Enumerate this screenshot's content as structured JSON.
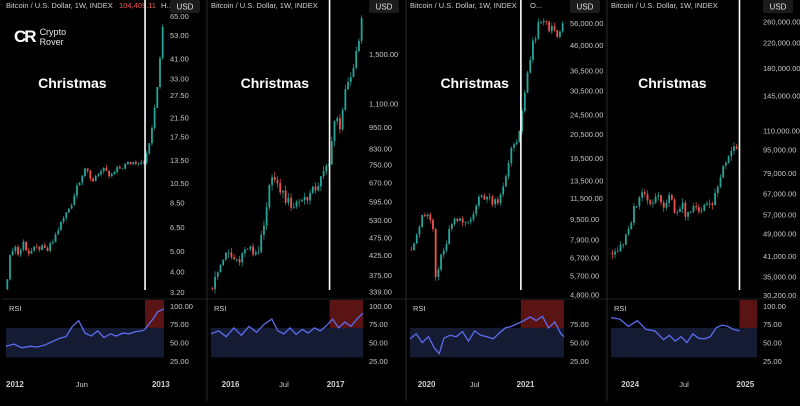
{
  "brand": {
    "mark": "CR",
    "line1": "Crypto",
    "line2": "Rover"
  },
  "colors": {
    "background": "#000000",
    "candle_up": "#26a69a",
    "candle_down": "#ef5350",
    "christmas_line": "#ffffff",
    "rsi_line": "#5b6cf0",
    "rsi_band": "#141b33",
    "overbought_zone": "#5a1414",
    "divider": "#2a2a2a"
  },
  "chart_data": [
    {
      "type": "candlestick",
      "title": "Bitcoin / U.S. Dollar, 1W, INDEX",
      "header_price": "104,409.11",
      "header_suffix": "H...",
      "currency_label": "USD",
      "scale": "log",
      "ylim": [
        3.0,
        68.0
      ],
      "y_ticks": [
        "65.00",
        "53.00",
        "41.00",
        "33.00",
        "27.50",
        "21.50",
        "17.50",
        "13.50",
        "10.50",
        "8.50",
        "6.50",
        "5.00",
        "4.00",
        "3.20"
      ],
      "y_tick_values": [
        65,
        53,
        41,
        33,
        27.5,
        21.5,
        17.5,
        13.5,
        10.5,
        8.5,
        6.5,
        5,
        4,
        3.2
      ],
      "x_ticks": [
        "2012",
        "Jun",
        "2013"
      ],
      "x_tick_positions": [
        0.0,
        0.48,
        0.98
      ],
      "annotation": "Christmas",
      "christmas_x": 0.88,
      "price_path": [
        [
          0.0,
          3.3
        ],
        [
          0.02,
          4.5
        ],
        [
          0.05,
          5.4
        ],
        [
          0.08,
          4.8
        ],
        [
          0.11,
          5.5
        ],
        [
          0.14,
          4.9
        ],
        [
          0.18,
          5.1
        ],
        [
          0.22,
          5.2
        ],
        [
          0.26,
          5.0
        ],
        [
          0.3,
          5.6
        ],
        [
          0.34,
          6.6
        ],
        [
          0.38,
          7.5
        ],
        [
          0.42,
          8.6
        ],
        [
          0.45,
          10.3
        ],
        [
          0.48,
          11.5
        ],
        [
          0.5,
          12.4
        ],
        [
          0.54,
          10.6
        ],
        [
          0.58,
          11.8
        ],
        [
          0.62,
          12.0
        ],
        [
          0.66,
          11.2
        ],
        [
          0.7,
          12.1
        ],
        [
          0.74,
          12.6
        ],
        [
          0.78,
          13.1
        ],
        [
          0.82,
          13.3
        ],
        [
          0.86,
          13.4
        ],
        [
          0.88,
          13.5
        ],
        [
          0.9,
          15.0
        ],
        [
          0.92,
          18.5
        ],
        [
          0.94,
          23.0
        ],
        [
          0.96,
          31.0
        ],
        [
          0.98,
          46.0
        ],
        [
          1.0,
          68.0
        ]
      ],
      "rsi": {
        "label": "RSI",
        "y_ticks": [
          "100.00",
          "75.00",
          "50.00",
          "25.00"
        ],
        "y_tick_values": [
          100,
          75,
          50,
          25
        ],
        "ylim": [
          10,
          108
        ],
        "band": [
          30,
          70
        ],
        "overbought_from_x": 0.88,
        "path": [
          [
            0.0,
            45
          ],
          [
            0.05,
            48
          ],
          [
            0.1,
            43
          ],
          [
            0.15,
            45
          ],
          [
            0.2,
            44
          ],
          [
            0.25,
            47
          ],
          [
            0.3,
            52
          ],
          [
            0.34,
            56
          ],
          [
            0.38,
            58
          ],
          [
            0.42,
            72
          ],
          [
            0.46,
            80
          ],
          [
            0.5,
            63
          ],
          [
            0.54,
            59
          ],
          [
            0.58,
            66
          ],
          [
            0.62,
            57
          ],
          [
            0.66,
            62
          ],
          [
            0.7,
            59
          ],
          [
            0.74,
            63
          ],
          [
            0.78,
            62
          ],
          [
            0.82,
            65
          ],
          [
            0.86,
            66
          ],
          [
            0.88,
            68
          ],
          [
            0.9,
            74
          ],
          [
            0.93,
            82
          ],
          [
            0.96,
            92
          ],
          [
            1.0,
            96
          ]
        ]
      }
    },
    {
      "type": "candlestick",
      "title": "Bitcoin / U.S. Dollar, 1W, INDEX",
      "currency_label": "USD",
      "scale": "log",
      "ylim": [
        325,
        1950
      ],
      "y_ticks": [
        "1,500.00",
        "1,100.00",
        "950.00",
        "830.00",
        "750.00",
        "670.00",
        "595.00",
        "530.00",
        "475.00",
        "425.00",
        "375.00",
        "339.00"
      ],
      "y_tick_values": [
        1500,
        1100,
        950,
        830,
        750,
        670,
        595,
        530,
        475,
        425,
        375,
        339
      ],
      "x_ticks": [
        "2016",
        "Jul",
        "2017"
      ],
      "x_tick_positions": [
        0.07,
        0.48,
        0.82
      ],
      "annotation": "Christmas",
      "christmas_x": 0.78,
      "price_path": [
        [
          0.0,
          345
        ],
        [
          0.04,
          375
        ],
        [
          0.08,
          420
        ],
        [
          0.12,
          425
        ],
        [
          0.16,
          410
        ],
        [
          0.2,
          425
        ],
        [
          0.24,
          445
        ],
        [
          0.28,
          430
        ],
        [
          0.32,
          445
        ],
        [
          0.36,
          530
        ],
        [
          0.4,
          720
        ],
        [
          0.43,
          650
        ],
        [
          0.46,
          640
        ],
        [
          0.5,
          595
        ],
        [
          0.54,
          580
        ],
        [
          0.58,
          600
        ],
        [
          0.62,
          610
        ],
        [
          0.66,
          625
        ],
        [
          0.7,
          660
        ],
        [
          0.74,
          700
        ],
        [
          0.78,
          780
        ],
        [
          0.8,
          900
        ],
        [
          0.82,
          1000
        ],
        [
          0.85,
          960
        ],
        [
          0.88,
          1150
        ],
        [
          0.91,
          1250
        ],
        [
          0.94,
          1400
        ],
        [
          0.97,
          1650
        ],
        [
          1.0,
          1900
        ]
      ],
      "rsi": {
        "label": "RSI",
        "y_ticks": [
          "100.00",
          "75.00",
          "50.00",
          "25.00"
        ],
        "y_tick_values": [
          100,
          75,
          50,
          25
        ],
        "ylim": [
          10,
          108
        ],
        "band": [
          30,
          70
        ],
        "overbought_from_x": 0.78,
        "path": [
          [
            0.0,
            62
          ],
          [
            0.05,
            66
          ],
          [
            0.1,
            58
          ],
          [
            0.15,
            70
          ],
          [
            0.2,
            60
          ],
          [
            0.25,
            72
          ],
          [
            0.3,
            64
          ],
          [
            0.35,
            75
          ],
          [
            0.4,
            82
          ],
          [
            0.44,
            66
          ],
          [
            0.48,
            62
          ],
          [
            0.52,
            70
          ],
          [
            0.56,
            61
          ],
          [
            0.6,
            68
          ],
          [
            0.64,
            63
          ],
          [
            0.68,
            70
          ],
          [
            0.72,
            66
          ],
          [
            0.76,
            73
          ],
          [
            0.8,
            82
          ],
          [
            0.84,
            70
          ],
          [
            0.88,
            78
          ],
          [
            0.92,
            72
          ],
          [
            0.96,
            82
          ],
          [
            1.0,
            90
          ]
        ]
      }
    },
    {
      "type": "candlestick",
      "title": "Bitcoin / U.S. Dollar, 1W, INDEX",
      "header_suffix": "O...",
      "currency_label": "USD",
      "scale": "log",
      "ylim": [
        4650,
        62000
      ],
      "y_ticks": [
        "56,000.00",
        "46,000.00",
        "36,500.00",
        "30,500.00",
        "24,500.00",
        "20,500.00",
        "16,500.00",
        "13,500.00",
        "11,500.00",
        "9,500.00",
        "7,900.00",
        "6,700.00",
        "5,700.00",
        "4,800.00"
      ],
      "y_tick_values": [
        56000,
        46000,
        36500,
        30500,
        24500,
        20500,
        16500,
        13500,
        11500,
        9500,
        7900,
        6700,
        5700,
        4800
      ],
      "x_ticks": [
        "2020",
        "Jul",
        "2021"
      ],
      "x_tick_positions": [
        0.05,
        0.42,
        0.75
      ],
      "annotation": "Christmas",
      "christmas_x": 0.72,
      "price_path": [
        [
          0.0,
          7200
        ],
        [
          0.04,
          8200
        ],
        [
          0.08,
          9600
        ],
        [
          0.12,
          9900
        ],
        [
          0.15,
          8600
        ],
        [
          0.17,
          5000
        ],
        [
          0.19,
          6500
        ],
        [
          0.22,
          7000
        ],
        [
          0.26,
          8800
        ],
        [
          0.3,
          9400
        ],
        [
          0.34,
          9200
        ],
        [
          0.38,
          9300
        ],
        [
          0.42,
          10500
        ],
        [
          0.46,
          11700
        ],
        [
          0.5,
          11600
        ],
        [
          0.54,
          11200
        ],
        [
          0.58,
          11400
        ],
        [
          0.6,
          12900
        ],
        [
          0.62,
          13500
        ],
        [
          0.64,
          15500
        ],
        [
          0.66,
          18000
        ],
        [
          0.68,
          19000
        ],
        [
          0.7,
          19200
        ],
        [
          0.72,
          23000
        ],
        [
          0.74,
          29000
        ],
        [
          0.76,
          35000
        ],
        [
          0.78,
          40000
        ],
        [
          0.8,
          47000
        ],
        [
          0.82,
          50000
        ],
        [
          0.84,
          57000
        ],
        [
          0.86,
          55000
        ],
        [
          0.88,
          58000
        ],
        [
          0.9,
          52000
        ],
        [
          0.93,
          56000
        ],
        [
          0.96,
          49000
        ],
        [
          1.0,
          56000
        ]
      ],
      "rsi": {
        "label": "RSI",
        "y_ticks": [
          "75.00",
          "50.00",
          "25.00"
        ],
        "y_tick_values": [
          75,
          50,
          25
        ],
        "ylim": [
          10,
          108
        ],
        "band": [
          30,
          70
        ],
        "overbought_from_x": 0.72,
        "path": [
          [
            0.0,
            55
          ],
          [
            0.04,
            62
          ],
          [
            0.08,
            50
          ],
          [
            0.12,
            58
          ],
          [
            0.16,
            42
          ],
          [
            0.19,
            35
          ],
          [
            0.22,
            56
          ],
          [
            0.26,
            60
          ],
          [
            0.3,
            58
          ],
          [
            0.34,
            65
          ],
          [
            0.38,
            52
          ],
          [
            0.42,
            66
          ],
          [
            0.46,
            60
          ],
          [
            0.5,
            58
          ],
          [
            0.54,
            55
          ],
          [
            0.58,
            63
          ],
          [
            0.62,
            70
          ],
          [
            0.66,
            72
          ],
          [
            0.7,
            76
          ],
          [
            0.74,
            80
          ],
          [
            0.78,
            85
          ],
          [
            0.82,
            80
          ],
          [
            0.86,
            86
          ],
          [
            0.9,
            70
          ],
          [
            0.94,
            78
          ],
          [
            0.98,
            62
          ],
          [
            1.0,
            58
          ]
        ]
      }
    },
    {
      "type": "candlestick",
      "title": "Bitcoin / U.S. Dollar, 1W, INDEX",
      "currency_label": "USD",
      "scale": "log",
      "ylim": [
        29500,
        280000
      ],
      "y_ticks": [
        "260,000.00",
        "220,000.00",
        "180,000.00",
        "145,000.00",
        "110,000.00",
        "95,000.00",
        "79,000.00",
        "67,000.00",
        "57,000.00",
        "49,000.00",
        "41,000.00",
        "35,000.00",
        "30,200.00"
      ],
      "y_tick_values": [
        260000,
        220000,
        180000,
        145000,
        110000,
        95000,
        79000,
        67000,
        57000,
        49000,
        41000,
        35000,
        30200
      ],
      "x_ticks": [
        "2024",
        "Jul",
        "2025"
      ],
      "x_tick_positions": [
        0.07,
        0.5,
        0.92
      ],
      "annotation": "Christmas",
      "christmas_x": 0.88,
      "price_path": [
        [
          0.0,
          42000
        ],
        [
          0.04,
          43000
        ],
        [
          0.08,
          44000
        ],
        [
          0.12,
          50000
        ],
        [
          0.16,
          60000
        ],
        [
          0.2,
          67000
        ],
        [
          0.24,
          66000
        ],
        [
          0.28,
          63000
        ],
        [
          0.32,
          67000
        ],
        [
          0.36,
          62000
        ],
        [
          0.4,
          66000
        ],
        [
          0.44,
          58000
        ],
        [
          0.48,
          62000
        ],
        [
          0.52,
          56000
        ],
        [
          0.56,
          60000
        ],
        [
          0.6,
          58000
        ],
        [
          0.64,
          62000
        ],
        [
          0.68,
          60000
        ],
        [
          0.72,
          68000
        ],
        [
          0.76,
          80000
        ],
        [
          0.8,
          92000
        ],
        [
          0.84,
          98000
        ],
        [
          0.86,
          97000
        ],
        [
          0.88,
          95000
        ]
      ],
      "rsi": {
        "label": "RSI",
        "y_ticks": [
          "100.00",
          "75.00",
          "50.00",
          "25.00"
        ],
        "y_tick_values": [
          100,
          75,
          50,
          25
        ],
        "ylim": [
          10,
          108
        ],
        "band": [
          30,
          70
        ],
        "overbought_from_x": 0.88,
        "path": [
          [
            0.0,
            84
          ],
          [
            0.06,
            82
          ],
          [
            0.12,
            72
          ],
          [
            0.18,
            80
          ],
          [
            0.24,
            68
          ],
          [
            0.3,
            66
          ],
          [
            0.36,
            54
          ],
          [
            0.4,
            60
          ],
          [
            0.44,
            52
          ],
          [
            0.48,
            58
          ],
          [
            0.52,
            50
          ],
          [
            0.56,
            62
          ],
          [
            0.6,
            56
          ],
          [
            0.64,
            55
          ],
          [
            0.68,
            58
          ],
          [
            0.72,
            70
          ],
          [
            0.76,
            74
          ],
          [
            0.8,
            72
          ],
          [
            0.84,
            68
          ],
          [
            0.88,
            66
          ]
        ]
      }
    }
  ]
}
